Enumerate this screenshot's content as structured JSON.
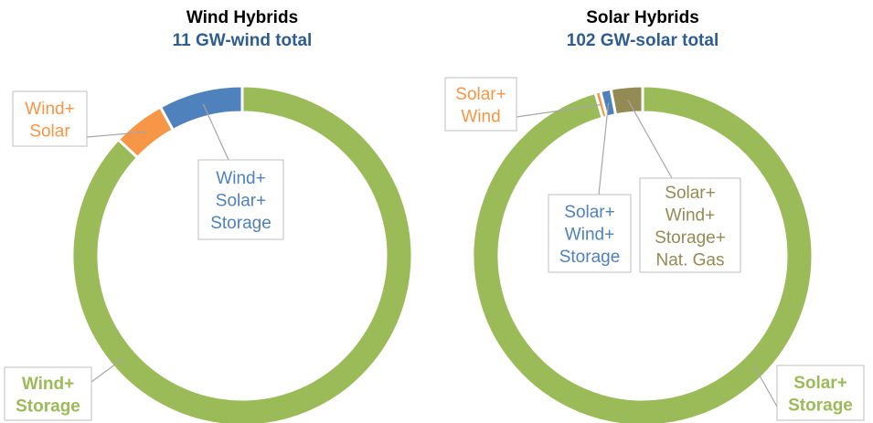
{
  "chart_data": [
    {
      "type": "donut",
      "title": "Wind Hybrids",
      "subtitle": "11 GW-wind total",
      "categories": [
        [
          "Wind+",
          "Storage"
        ],
        [
          "Wind+",
          "Solar"
        ],
        [
          "Wind+",
          "Solar+",
          "Storage"
        ]
      ],
      "values": [
        87,
        5,
        8
      ],
      "colors": [
        "#9bbb59",
        "#f79646",
        "#4f81bd"
      ]
    },
    {
      "type": "donut",
      "title": "Solar Hybrids",
      "subtitle": "102 GW-solar total",
      "categories": [
        [
          "Solar+",
          "Storage"
        ],
        [
          "Solar+",
          "Wind"
        ],
        [
          "Solar+",
          "Wind+",
          "Storage"
        ],
        [
          "Solar+",
          "Wind+",
          "Storage+",
          "Nat. Gas"
        ]
      ],
      "values": [
        95.5,
        0.5,
        1,
        3
      ],
      "colors": [
        "#9bbb59",
        "#f79646",
        "#4f81bd",
        "#948a54"
      ]
    }
  ]
}
